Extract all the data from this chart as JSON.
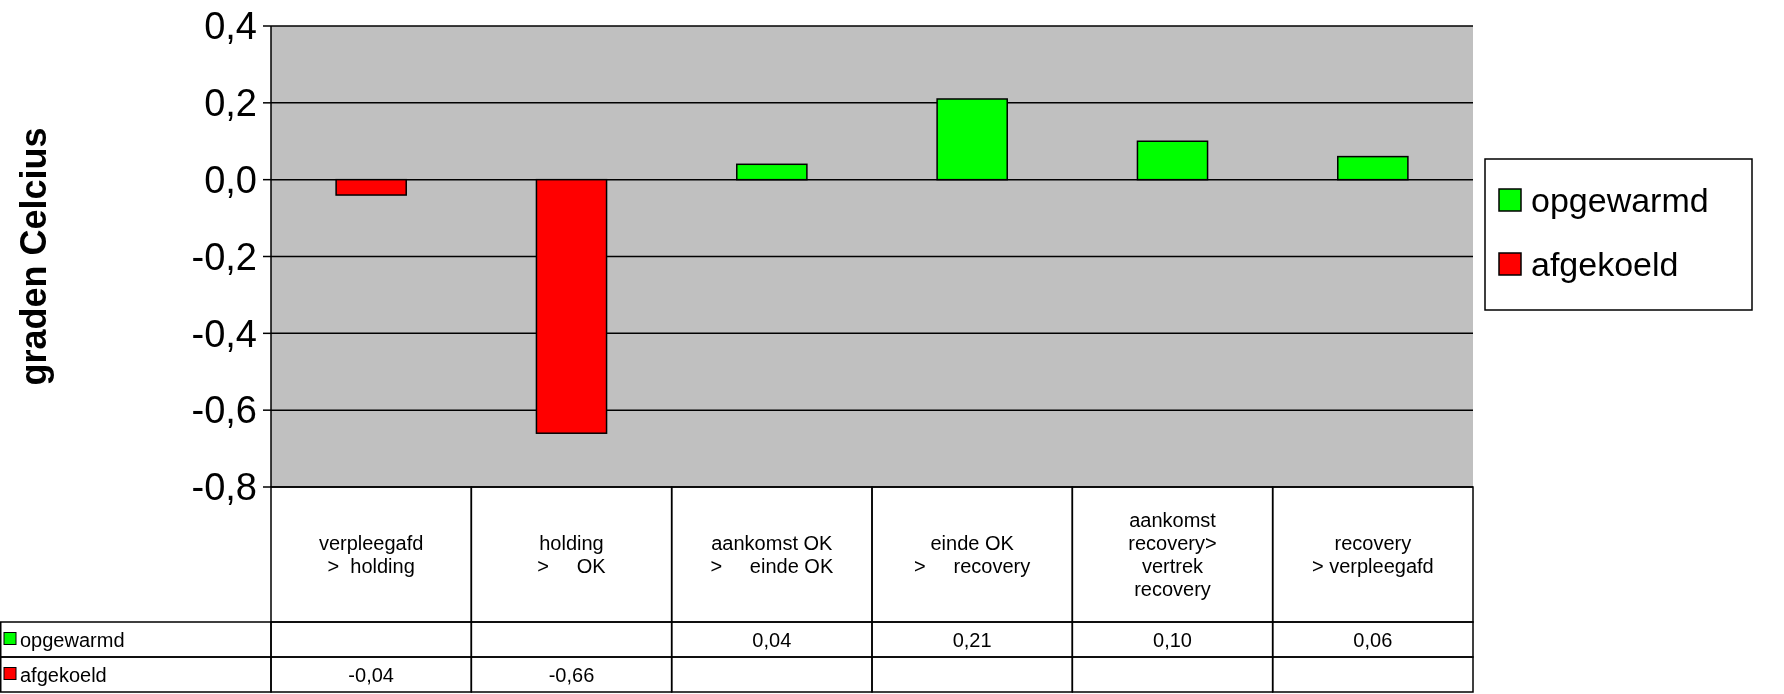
{
  "chart_data": {
    "type": "bar",
    "ylabel": "graden Celcius",
    "categories": [
      "verpleegafd\n>  holding",
      "holding\n>     OK",
      "aankomst OK\n>     einde OK",
      "einde OK\n>     recovery",
      "aankomst\nrecovery>\nvertrek\nrecovery",
      "recovery\n> verpleegafd"
    ],
    "series": [
      {
        "name": "opgewarmd",
        "color": "#00ff00",
        "values": [
          null,
          null,
          0.04,
          0.21,
          0.1,
          0.06
        ],
        "value_labels": [
          null,
          null,
          "0,04",
          "0,21",
          "0,10",
          "0,06"
        ]
      },
      {
        "name": "afgekoeld",
        "color": "#ff0000",
        "values": [
          -0.04,
          -0.66,
          null,
          null,
          null,
          null
        ],
        "value_labels": [
          "-0,04",
          "-0,66",
          null,
          null,
          null,
          null
        ]
      }
    ],
    "stacked": true,
    "ylim": [
      -0.8,
      0.4
    ],
    "yticks": [
      {
        "value": -0.8,
        "label": "-0,8"
      },
      {
        "value": -0.6,
        "label": "-0,6"
      },
      {
        "value": -0.4,
        "label": "-0,4"
      },
      {
        "value": -0.2,
        "label": "-0,2"
      },
      {
        "value": 0,
        "label": "0,0"
      },
      {
        "value": 0.2,
        "label": "0,2"
      },
      {
        "value": 0.4,
        "label": "0,4"
      }
    ],
    "grid": "y",
    "legend": "right"
  }
}
